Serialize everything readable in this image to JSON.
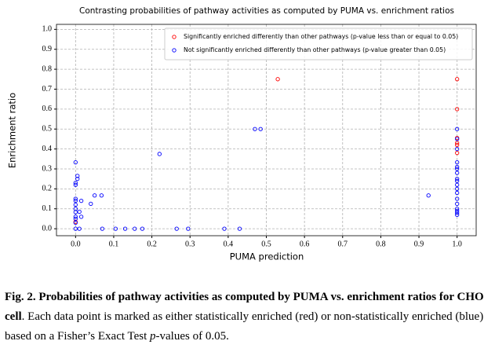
{
  "chart_data": {
    "type": "scatter",
    "title": "Contrasting probabilities of pathway activities as computed by PUMA vs. enrichment ratios",
    "x_label": "PUMA prediction",
    "y_label": "Enrichment ratio",
    "xlim": [
      -0.05,
      1.05
    ],
    "ylim": [
      -0.035,
      1.025
    ],
    "xticks": [
      {
        "value": 0,
        "label": "0.0"
      },
      {
        "value": 0.1,
        "label": "0.1"
      },
      {
        "value": 0.2,
        "label": "0.2"
      },
      {
        "value": 0.3,
        "label": "0.3"
      },
      {
        "value": 0.4,
        "label": "0.4"
      },
      {
        "value": 0.5,
        "label": "0.5"
      },
      {
        "value": 0.6,
        "label": "0.6"
      },
      {
        "value": 0.7,
        "label": "0.7"
      },
      {
        "value": 0.8,
        "label": "0.8"
      },
      {
        "value": 0.9,
        "label": "0.9"
      },
      {
        "value": 1,
        "label": "1.0"
      }
    ],
    "yticks": [
      {
        "value": 0,
        "label": "0.0"
      },
      {
        "value": 0.1,
        "label": "0.1"
      },
      {
        "value": 0.2,
        "label": "0.2"
      },
      {
        "value": 0.3,
        "label": "0.3"
      },
      {
        "value": 0.4,
        "label": "0.4"
      },
      {
        "value": 0.5,
        "label": "0.5"
      },
      {
        "value": 0.6,
        "label": "0.6"
      },
      {
        "value": 0.7,
        "label": "0.7"
      },
      {
        "value": 0.8,
        "label": "0.8"
      },
      {
        "value": 0.9,
        "label": "0.9"
      },
      {
        "value": 1,
        "label": "1.0"
      }
    ],
    "grid": true,
    "legend": "upper right",
    "series": [
      {
        "name": "Significantly enriched differently than other pathways (p-value less than or equal to 0.05)",
        "color": "#ff0000",
        "x": [
          0.0,
          0.53,
          1.0,
          1.0,
          1.0,
          1.0,
          1.0,
          1.0
        ],
        "values": [
          0.035,
          0.75,
          0.75,
          0.6,
          0.455,
          0.43,
          0.42,
          0.38
        ]
      },
      {
        "name": "Not significantly enriched differently than other pathways (p-value greater than 0.05)",
        "color": "#0000ff",
        "x": [
          0.0,
          0.0,
          0.0,
          0.0,
          0.0,
          0.0,
          0.0,
          0.0,
          0.0,
          0.0,
          0.0,
          0.0,
          0.005,
          0.005,
          0.01,
          0.01,
          0.015,
          0.015,
          0.04,
          0.05,
          0.068,
          0.07,
          0.105,
          0.13,
          0.155,
          0.175,
          0.22,
          0.265,
          0.295,
          0.39,
          0.43,
          0.47,
          0.485,
          0.925,
          1.0,
          1.0,
          1.0,
          1.0,
          1.0,
          1.0,
          1.0,
          1.0,
          1.0,
          1.0,
          1.0,
          1.0,
          1.0,
          1.0,
          1.0,
          1.0,
          1.0,
          1.0
        ],
        "values": [
          0.333,
          0.23,
          0.22,
          0.15,
          0.14,
          0.12,
          0.1,
          0.083,
          0.06,
          0.05,
          0.03,
          0.0,
          0.265,
          0.25,
          0.0,
          0.085,
          0.14,
          0.06,
          0.125,
          0.167,
          0.167,
          0.0,
          0.0,
          0.0,
          0.0,
          0.0,
          0.375,
          0.0,
          0.0,
          0.0,
          0.0,
          0.5,
          0.5,
          0.167,
          0.5,
          0.45,
          0.4,
          0.333,
          0.31,
          0.3,
          0.28,
          0.25,
          0.24,
          0.22,
          0.2,
          0.18,
          0.15,
          0.125,
          0.1,
          0.09,
          0.08,
          0.07
        ]
      }
    ]
  },
  "caption": {
    "bold": "Fig. 2. Probabilities of pathway activities as computed by PUMA vs. enrichment ratios for CHO cell",
    "rest_1": ". Each data point is marked as either statistically enriched (red) or non-statistically enriched (blue) based on a Fisher’s Exact Test ",
    "italic": "p",
    "rest_2": "-values of 0.05."
  }
}
